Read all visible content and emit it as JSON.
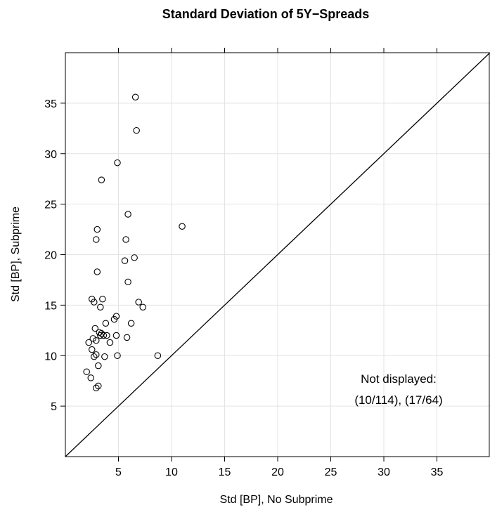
{
  "chart_data": {
    "type": "scatter",
    "title": "Standard Deviation of 5Y−Spreads",
    "xlabel": "Std [BP], No Subprime",
    "ylabel": "Std [BP], Subprime",
    "xlim": [
      0,
      40
    ],
    "ylim": [
      0,
      40
    ],
    "xticks": [
      5,
      10,
      15,
      20,
      25,
      30,
      35
    ],
    "yticks": [
      5,
      10,
      15,
      20,
      25,
      30,
      35
    ],
    "grid": true,
    "reference_line": "y = x",
    "annotation": {
      "line1": "Not displayed:",
      "line2": "(10/114), (17/64)"
    },
    "points": [
      [
        6.6,
        35.6
      ],
      [
        6.7,
        32.3
      ],
      [
        4.9,
        29.1
      ],
      [
        3.4,
        27.4
      ],
      [
        5.9,
        24.0
      ],
      [
        11.0,
        22.8
      ],
      [
        3.0,
        22.5
      ],
      [
        2.9,
        21.5
      ],
      [
        5.7,
        21.5
      ],
      [
        6.5,
        19.7
      ],
      [
        5.6,
        19.4
      ],
      [
        3.0,
        18.3
      ],
      [
        5.9,
        17.3
      ],
      [
        2.5,
        15.6
      ],
      [
        3.5,
        15.6
      ],
      [
        2.7,
        15.3
      ],
      [
        6.9,
        15.3
      ],
      [
        3.3,
        14.8
      ],
      [
        7.3,
        14.8
      ],
      [
        4.8,
        13.9
      ],
      [
        4.6,
        13.6
      ],
      [
        3.8,
        13.2
      ],
      [
        6.2,
        13.2
      ],
      [
        2.8,
        12.7
      ],
      [
        3.2,
        12.3
      ],
      [
        3.4,
        12.2
      ],
      [
        3.3,
        12.0
      ],
      [
        3.6,
        12.0
      ],
      [
        3.9,
        12.0
      ],
      [
        4.8,
        12.0
      ],
      [
        5.8,
        11.8
      ],
      [
        2.6,
        11.7
      ],
      [
        2.9,
        11.5
      ],
      [
        2.2,
        11.3
      ],
      [
        4.2,
        11.3
      ],
      [
        2.5,
        10.6
      ],
      [
        2.9,
        10.1
      ],
      [
        2.7,
        9.9
      ],
      [
        3.7,
        9.9
      ],
      [
        4.9,
        10.0
      ],
      [
        8.7,
        10.0
      ],
      [
        3.1,
        9.0
      ],
      [
        2.0,
        8.4
      ],
      [
        2.4,
        7.8
      ],
      [
        3.1,
        7.0
      ],
      [
        2.9,
        6.8
      ]
    ]
  }
}
